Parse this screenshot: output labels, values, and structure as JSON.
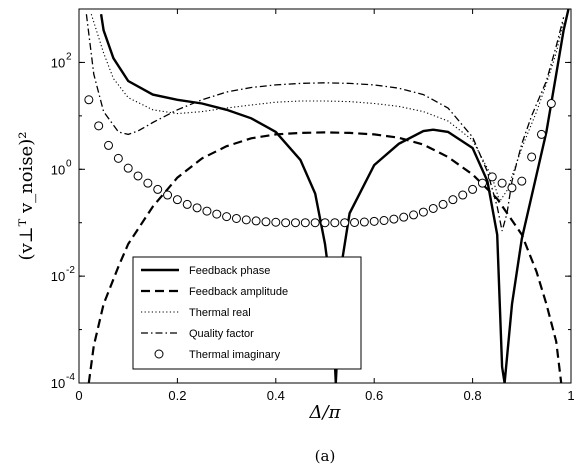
{
  "chart_data": {
    "type": "line",
    "xlabel": "Δ/π",
    "ylabel": "(v⊥ᵀ v_noise)²",
    "xlim": [
      0,
      1
    ],
    "ylim": [
      0.0001,
      1000
    ],
    "yscale": "log",
    "x_ticks": [
      "0",
      "0.2",
      "0.4",
      "0.6",
      "0.8",
      "1"
    ],
    "y_ticks": [
      {
        "value": 0.0001,
        "base": "10",
        "exp": "-4"
      },
      {
        "value": 0.01,
        "base": "10",
        "exp": "-2"
      },
      {
        "value": 1,
        "base": "10",
        "exp": "0"
      },
      {
        "value": 100,
        "base": "10",
        "exp": "2"
      }
    ],
    "caption": "(a)",
    "legend_position": "bottom-left",
    "series": [
      {
        "name": "Feedback phase",
        "style": "solid",
        "x": [
          0.045,
          0.05,
          0.07,
          0.1,
          0.15,
          0.2,
          0.25,
          0.3,
          0.35,
          0.4,
          0.45,
          0.48,
          0.5,
          0.51,
          0.518,
          0.522,
          0.526,
          0.535,
          0.55,
          0.6,
          0.65,
          0.7,
          0.72,
          0.75,
          0.8,
          0.83,
          0.85,
          0.86,
          0.865,
          0.87,
          0.88,
          0.9,
          0.93,
          0.95,
          0.97,
          0.985,
          0.995
        ],
        "y": [
          800,
          400,
          120,
          45,
          25,
          20,
          17,
          13,
          9,
          5,
          1.5,
          0.35,
          0.04,
          0.008,
          0.0006,
          0.0001,
          0.0006,
          0.02,
          0.15,
          1.2,
          3,
          5.2,
          5.5,
          5,
          2.5,
          0.6,
          0.06,
          0.0002,
          0.0001,
          0.0003,
          0.003,
          0.05,
          0.8,
          5,
          60,
          400,
          1000
        ]
      },
      {
        "name": "Feedback amplitude",
        "style": "dashed",
        "x": [
          0.02,
          0.03,
          0.05,
          0.08,
          0.1,
          0.15,
          0.2,
          0.25,
          0.3,
          0.35,
          0.4,
          0.45,
          0.5,
          0.55,
          0.6,
          0.65,
          0.7,
          0.75,
          0.8,
          0.85,
          0.9,
          0.93,
          0.95,
          0.97,
          0.98
        ],
        "y": [
          0.0001,
          0.0005,
          0.003,
          0.015,
          0.04,
          0.2,
          0.7,
          1.6,
          2.7,
          3.8,
          4.5,
          4.8,
          4.9,
          4.8,
          4.5,
          3.9,
          2.9,
          1.7,
          0.8,
          0.28,
          0.06,
          0.012,
          0.003,
          0.0006,
          0.0001
        ]
      },
      {
        "name": "Thermal real",
        "style": "dotted",
        "x": [
          0.025,
          0.05,
          0.07,
          0.1,
          0.15,
          0.2,
          0.25,
          0.3,
          0.35,
          0.4,
          0.45,
          0.5,
          0.55,
          0.6,
          0.65,
          0.7,
          0.75,
          0.8,
          0.84,
          0.855,
          0.87,
          0.9,
          0.93,
          0.95,
          0.97,
          0.985
        ],
        "y": [
          800,
          150,
          50,
          22,
          13,
          11,
          12,
          14,
          16,
          18,
          19,
          19,
          18.5,
          17,
          15,
          12,
          8,
          3.5,
          0.7,
          0.25,
          0.4,
          2.5,
          12,
          40,
          150,
          600
        ]
      },
      {
        "name": "Quality factor",
        "style": "dashdot",
        "x": [
          0.015,
          0.03,
          0.05,
          0.08,
          0.1,
          0.12,
          0.15,
          0.2,
          0.25,
          0.3,
          0.35,
          0.4,
          0.45,
          0.5,
          0.55,
          0.6,
          0.65,
          0.7,
          0.75,
          0.8,
          0.83,
          0.85,
          0.86,
          0.87,
          0.88,
          0.9,
          0.92,
          0.95,
          0.97,
          0.985
        ],
        "y": [
          800,
          60,
          12,
          5,
          4.5,
          5.2,
          7.5,
          13,
          20,
          28,
          34,
          38,
          40.5,
          41.5,
          40.5,
          38,
          33,
          25,
          14,
          4,
          0.9,
          0.2,
          0.07,
          0.15,
          0.6,
          3,
          10,
          45,
          200,
          700
        ]
      },
      {
        "name": "Thermal imaginary",
        "style": "markers-circle",
        "x": [
          0.02,
          0.04,
          0.06,
          0.08,
          0.1,
          0.12,
          0.14,
          0.16,
          0.18,
          0.2,
          0.22,
          0.24,
          0.26,
          0.28,
          0.3,
          0.32,
          0.34,
          0.36,
          0.38,
          0.4,
          0.42,
          0.44,
          0.46,
          0.48,
          0.5,
          0.52,
          0.54,
          0.56,
          0.58,
          0.6,
          0.62,
          0.64,
          0.66,
          0.68,
          0.7,
          0.72,
          0.74,
          0.76,
          0.78,
          0.8,
          0.82,
          0.84,
          0.86,
          0.88,
          0.9,
          0.92,
          0.94,
          0.96
        ],
        "y": [
          20,
          6.5,
          2.8,
          1.6,
          1.05,
          0.75,
          0.55,
          0.42,
          0.33,
          0.27,
          0.22,
          0.19,
          0.165,
          0.145,
          0.13,
          0.12,
          0.113,
          0.108,
          0.104,
          0.102,
          0.1,
          0.1,
          0.1,
          0.1,
          0.1,
          0.1,
          0.1,
          0.101,
          0.103,
          0.106,
          0.11,
          0.117,
          0.127,
          0.14,
          0.158,
          0.185,
          0.22,
          0.27,
          0.33,
          0.42,
          0.55,
          0.72,
          0.55,
          0.45,
          0.6,
          1.7,
          4.5,
          17
        ]
      }
    ]
  }
}
